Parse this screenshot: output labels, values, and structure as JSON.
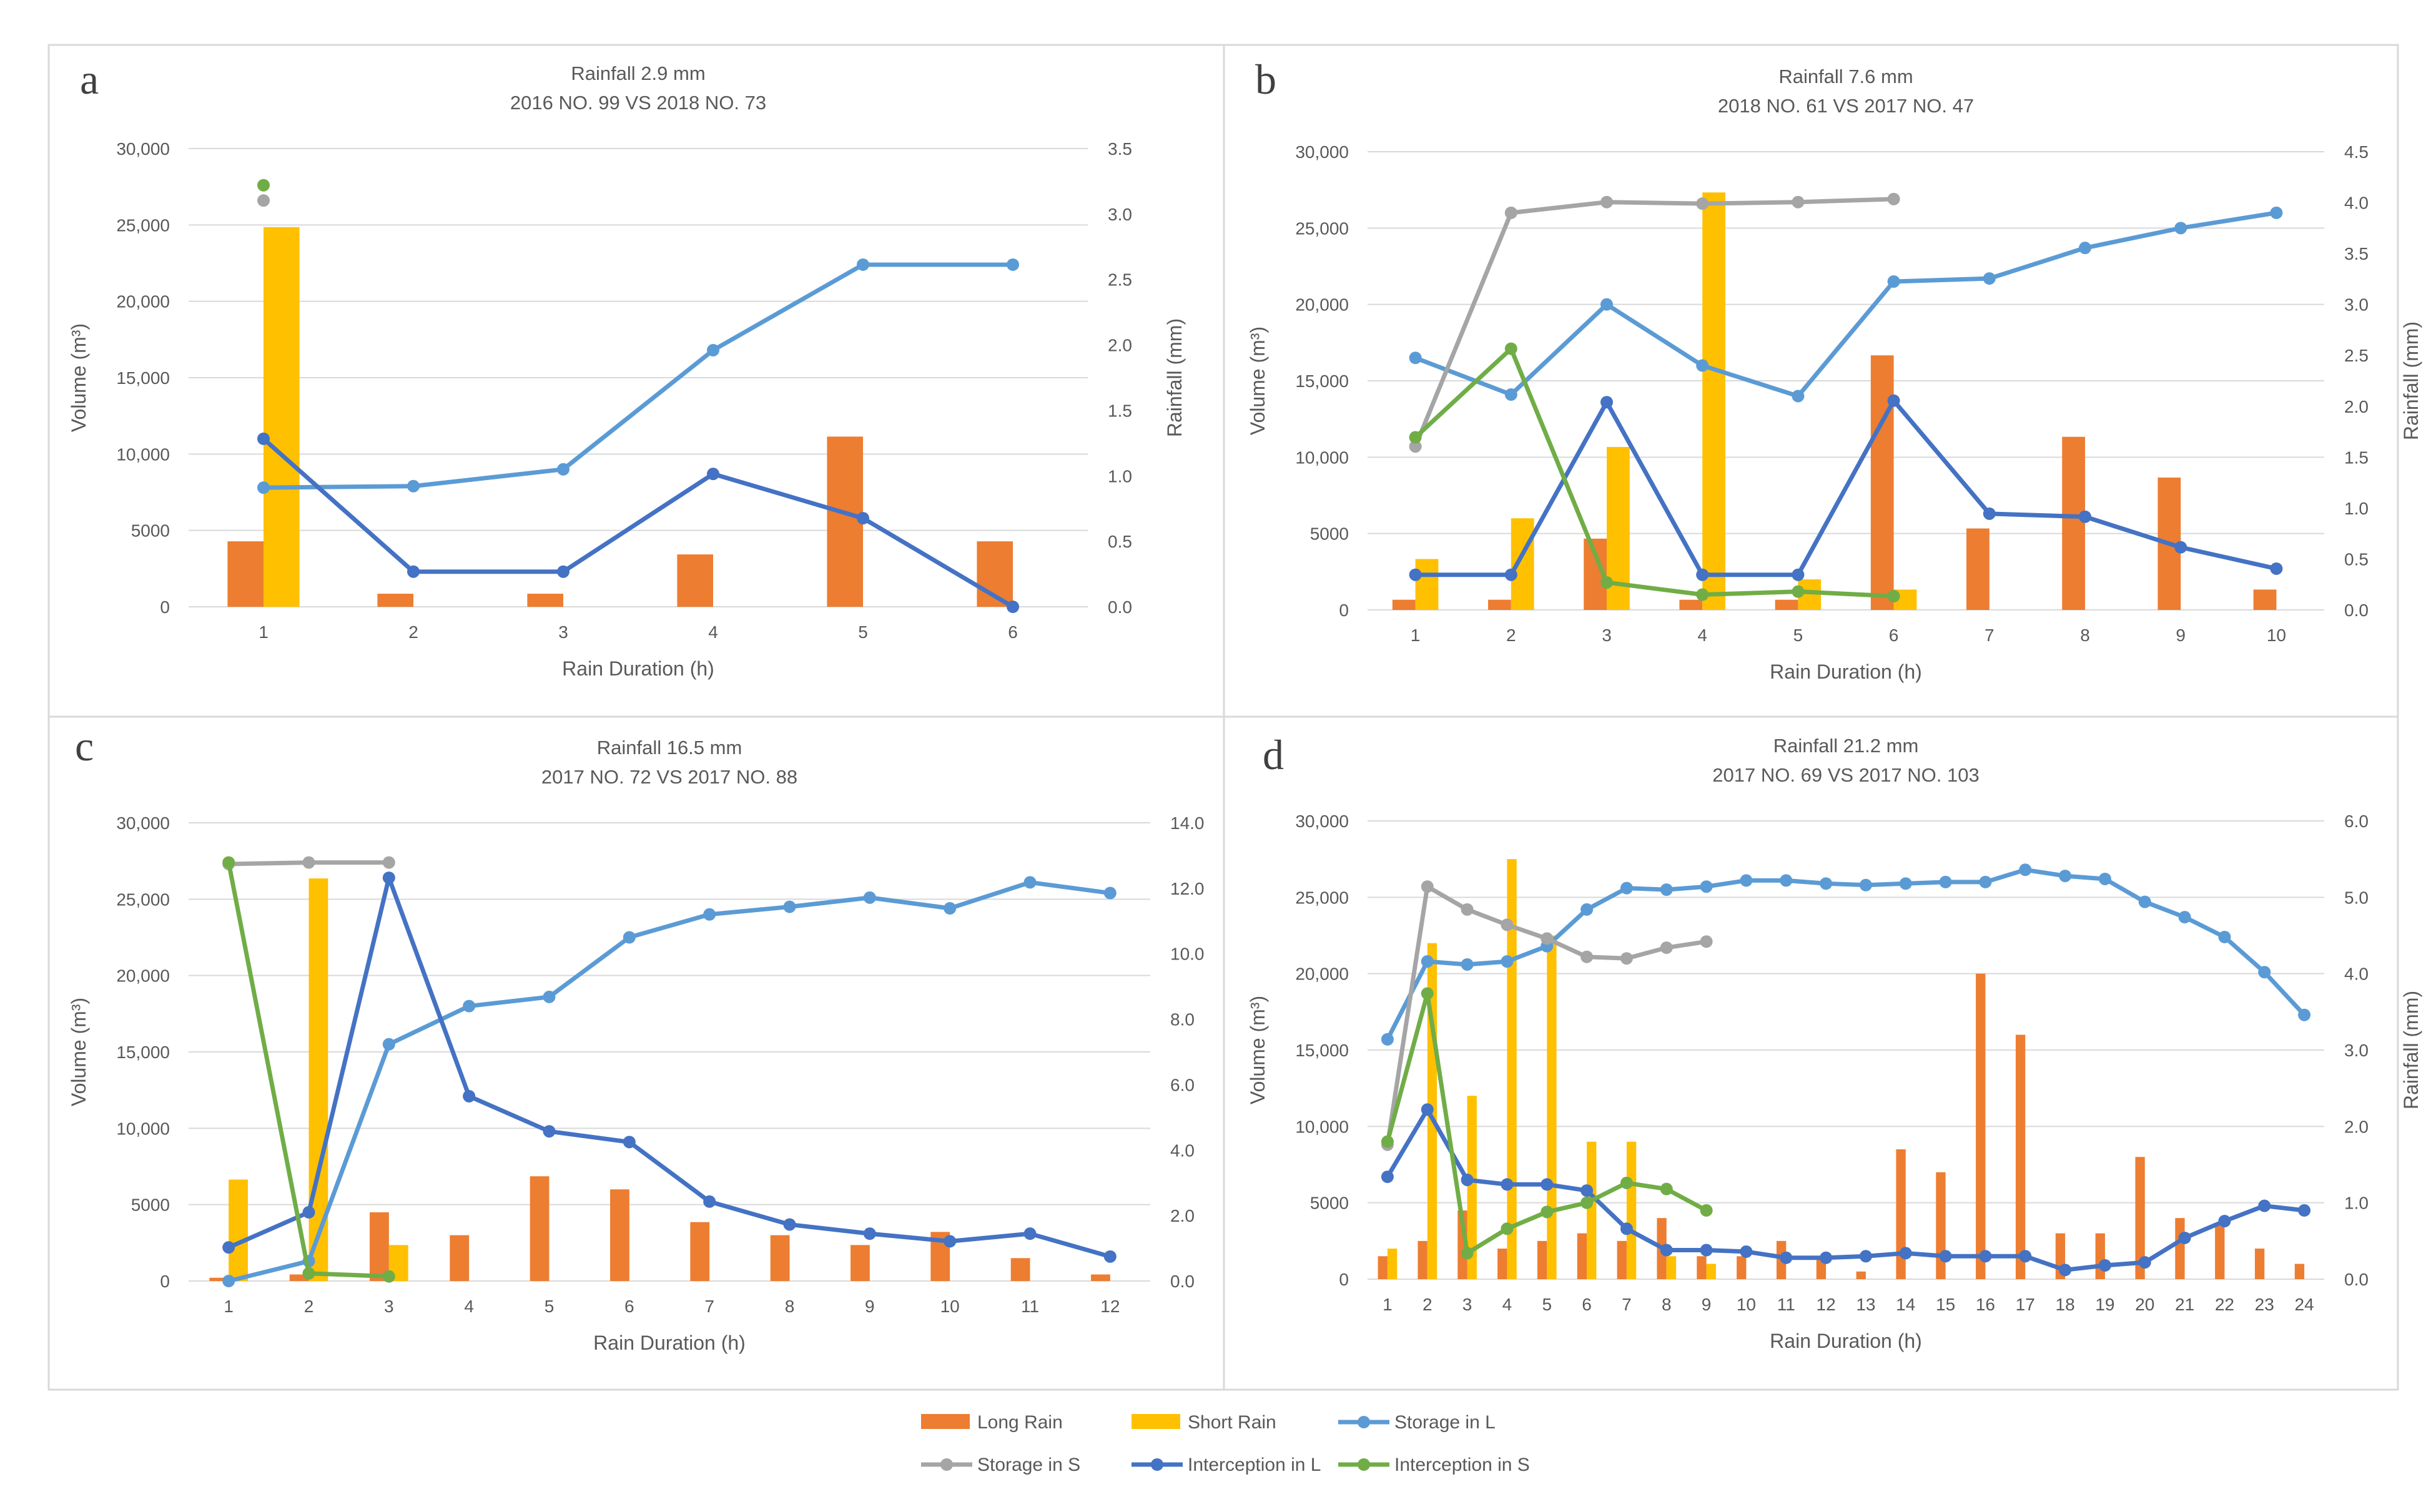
{
  "legend": {
    "items": [
      {
        "name": "Long Rain",
        "kind": "bar",
        "color": "#ED7D31"
      },
      {
        "name": "Short Rain",
        "kind": "bar",
        "color": "#FFC000"
      },
      {
        "name": "Storage in L",
        "kind": "line",
        "color": "#5B9BD5"
      },
      {
        "name": "Storage in S",
        "kind": "line",
        "color": "#A5A5A5"
      },
      {
        "name": "Interception in L",
        "kind": "line",
        "color": "#4472C4"
      },
      {
        "name": "Interception in S",
        "kind": "line",
        "color": "#70AD47"
      }
    ]
  },
  "chart_data": [
    {
      "type": "bar+line",
      "panel_label": "a",
      "title": "Rainfall 2.9 mm",
      "subtitle": "2016 NO. 99 VS 2018 NO. 73",
      "xlabel": "Rain Duration (h)",
      "ylabel": "Volume (m³)",
      "y2label": "Rainfall (mm)",
      "categories": [
        "1",
        "2",
        "3",
        "4",
        "5",
        "6"
      ],
      "ylim": [
        0,
        30000
      ],
      "yticks": [
        "0",
        "5000",
        "10,000",
        "15,000",
        "20,000",
        "25,000",
        "30,000"
      ],
      "y2lim": [
        0,
        3.5
      ],
      "y2ticks": [
        "0.0",
        "0.5",
        "1.0",
        "1.5",
        "2.0",
        "2.5",
        "3.0",
        "3.5"
      ],
      "bars": [
        {
          "name": "Long Rain",
          "axis": "right",
          "values": [
            0.5,
            0.1,
            0.1,
            0.4,
            1.3,
            0.5
          ]
        },
        {
          "name": "Short Rain",
          "axis": "right",
          "values": [
            2.9,
            null,
            null,
            null,
            null,
            null
          ]
        }
      ],
      "lines": [
        {
          "name": "Storage in L",
          "values": [
            7800,
            7900,
            9000,
            16800,
            22400,
            22400
          ]
        },
        {
          "name": "Storage in S",
          "values": [
            26600,
            null,
            null,
            null,
            null,
            null
          ]
        },
        {
          "name": "Interception in L",
          "values": [
            11000,
            2300,
            2300,
            8700,
            5800,
            0
          ]
        },
        {
          "name": "Interception in S",
          "values": [
            27600,
            null,
            null,
            null,
            null,
            null
          ]
        }
      ]
    },
    {
      "type": "bar+line",
      "panel_label": "b",
      "title": "Rainfall 7.6 mm",
      "subtitle": "2018 NO. 61 VS 2017 NO. 47",
      "xlabel": "Rain Duration (h)",
      "ylabel": "Volume (m³)",
      "y2label": "Rainfall (mm)",
      "categories": [
        "1",
        "2",
        "3",
        "4",
        "5",
        "6",
        "7",
        "8",
        "9",
        "10"
      ],
      "ylim": [
        0,
        30000
      ],
      "yticks": [
        "0",
        "5000",
        "10,000",
        "15,000",
        "20,000",
        "25,000",
        "30,000"
      ],
      "y2lim": [
        0,
        4.5
      ],
      "y2ticks": [
        "0.0",
        "0.5",
        "1.0",
        "1.5",
        "2.0",
        "2.5",
        "3.0",
        "3.5",
        "4.0",
        "4.5"
      ],
      "bars": [
        {
          "name": "Long Rain",
          "axis": "right",
          "values": [
            0.1,
            0.1,
            0.7,
            0.1,
            0.1,
            2.5,
            0.8,
            1.7,
            1.3,
            0.2
          ]
        },
        {
          "name": "Short Rain",
          "axis": "right",
          "values": [
            0.5,
            0.9,
            1.6,
            4.1,
            0.3,
            0.2,
            null,
            null,
            null,
            null
          ]
        }
      ],
      "lines": [
        {
          "name": "Storage in L",
          "values": [
            16500,
            14100,
            20000,
            16000,
            14000,
            21500,
            21700,
            23700,
            25000,
            26000
          ]
        },
        {
          "name": "Storage in S",
          "values": [
            10700,
            26000,
            26700,
            26600,
            26700,
            26900,
            null,
            null,
            null,
            null
          ]
        },
        {
          "name": "Interception in L",
          "values": [
            2300,
            2300,
            13600,
            2300,
            2300,
            13700,
            6300,
            6100,
            4100,
            2700
          ]
        },
        {
          "name": "Interception in S",
          "values": [
            11300,
            17100,
            1800,
            1000,
            1200,
            900,
            null,
            null,
            null,
            null
          ]
        }
      ]
    },
    {
      "type": "bar+line",
      "panel_label": "c",
      "title": "Rainfall 16.5 mm",
      "subtitle": "2017 NO. 72 VS 2017 NO. 88",
      "xlabel": "Rain Duration (h)",
      "ylabel": "Volume (m³)",
      "y2label": "Rainfall (mm)",
      "categories": [
        "1",
        "2",
        "3",
        "4",
        "5",
        "6",
        "7",
        "8",
        "9",
        "10",
        "11",
        "12"
      ],
      "ylim": [
        0,
        30000
      ],
      "yticks": [
        "0",
        "5000",
        "10,000",
        "15,000",
        "20,000",
        "25,000",
        "30,000"
      ],
      "y2lim": [
        0,
        14
      ],
      "y2ticks": [
        "0.0",
        "2.0",
        "4.0",
        "6.0",
        "8.0",
        "10.0",
        "12.0",
        "14.0"
      ],
      "bars": [
        {
          "name": "Long Rain",
          "axis": "right",
          "values": [
            0.1,
            0.2,
            2.1,
            1.4,
            3.2,
            2.8,
            1.8,
            1.4,
            1.1,
            1.5,
            0.7,
            0.2
          ]
        },
        {
          "name": "Short Rain",
          "axis": "right",
          "values": [
            3.1,
            12.3,
            1.1,
            null,
            null,
            null,
            null,
            null,
            null,
            null,
            null,
            null
          ]
        }
      ],
      "lines": [
        {
          "name": "Storage in L",
          "values": [
            0,
            1300,
            15500,
            18000,
            18600,
            22500,
            24000,
            24500,
            25100,
            24400,
            26100,
            25400
          ]
        },
        {
          "name": "Storage in S",
          "values": [
            27300,
            27400,
            27400,
            null,
            null,
            null,
            null,
            null,
            null,
            null,
            null,
            null
          ]
        },
        {
          "name": "Interception in L",
          "values": [
            2200,
            4500,
            26400,
            12100,
            9800,
            9100,
            5200,
            3700,
            3100,
            2600,
            3100,
            1600
          ]
        },
        {
          "name": "Interception in S",
          "values": [
            27400,
            500,
            300,
            null,
            null,
            null,
            null,
            null,
            null,
            null,
            null,
            null
          ]
        }
      ]
    },
    {
      "type": "bar+line",
      "panel_label": "d",
      "title": "Rainfall 21.2 mm",
      "subtitle": "2017 NO. 69 VS 2017 NO. 103",
      "xlabel": "Rain Duration (h)",
      "ylabel": "Volume (m³)",
      "y2label": "Rainfall (mm)",
      "categories": [
        "1",
        "2",
        "3",
        "4",
        "5",
        "6",
        "7",
        "8",
        "9",
        "10",
        "11",
        "12",
        "13",
        "14",
        "15",
        "16",
        "17",
        "18",
        "19",
        "20",
        "21",
        "22",
        "23",
        "24"
      ],
      "ylim": [
        0,
        30000
      ],
      "yticks": [
        "0",
        "5000",
        "10,000",
        "15,000",
        "20,000",
        "25,000",
        "30,000"
      ],
      "y2lim": [
        0,
        6
      ],
      "y2ticks": [
        "0.0",
        "1.0",
        "2.0",
        "3.0",
        "4.0",
        "5.0",
        "6.0"
      ],
      "bars": [
        {
          "name": "Long Rain",
          "axis": "right",
          "values": [
            0.3,
            0.5,
            0.9,
            0.4,
            0.5,
            0.6,
            0.5,
            0.8,
            0.3,
            0.3,
            0.5,
            0.3,
            0.1,
            1.7,
            1.4,
            4.0,
            3.2,
            0.6,
            0.6,
            1.6,
            0.8,
            0.7,
            0.4,
            0.2
          ]
        },
        {
          "name": "Short Rain",
          "axis": "right",
          "values": [
            0.4,
            4.4,
            2.4,
            5.5,
            4.5,
            1.8,
            1.8,
            0.3,
            0.2,
            null,
            null,
            null,
            null,
            null,
            null,
            null,
            null,
            null,
            null,
            null,
            null,
            null,
            null,
            null
          ]
        }
      ],
      "lines": [
        {
          "name": "Storage in L",
          "values": [
            15700,
            20800,
            20600,
            20800,
            21800,
            24200,
            25600,
            25500,
            25700,
            26100,
            26100,
            25900,
            25800,
            25900,
            26000,
            26000,
            26800,
            26400,
            26200,
            24700,
            23700,
            22400,
            20100,
            17300
          ]
        },
        {
          "name": "Storage in S",
          "values": [
            8800,
            25700,
            24200,
            23200,
            22300,
            21100,
            21000,
            21700,
            22100,
            null,
            null,
            null,
            null,
            null,
            null,
            null,
            null,
            null,
            null,
            null,
            null,
            null,
            null,
            null
          ]
        },
        {
          "name": "Interception in L",
          "values": [
            6700,
            11100,
            6500,
            6200,
            6200,
            5800,
            3300,
            1900,
            1900,
            1800,
            1400,
            1400,
            1500,
            1700,
            1500,
            1500,
            1500,
            600,
            900,
            1100,
            2700,
            3800,
            4800,
            4500
          ]
        },
        {
          "name": "Interception in S",
          "values": [
            9000,
            18700,
            1700,
            3300,
            4400,
            5000,
            6300,
            5900,
            4500,
            null,
            null,
            null,
            null,
            null,
            null,
            null,
            null,
            null,
            null,
            null,
            null,
            null,
            null,
            null
          ]
        }
      ]
    }
  ]
}
